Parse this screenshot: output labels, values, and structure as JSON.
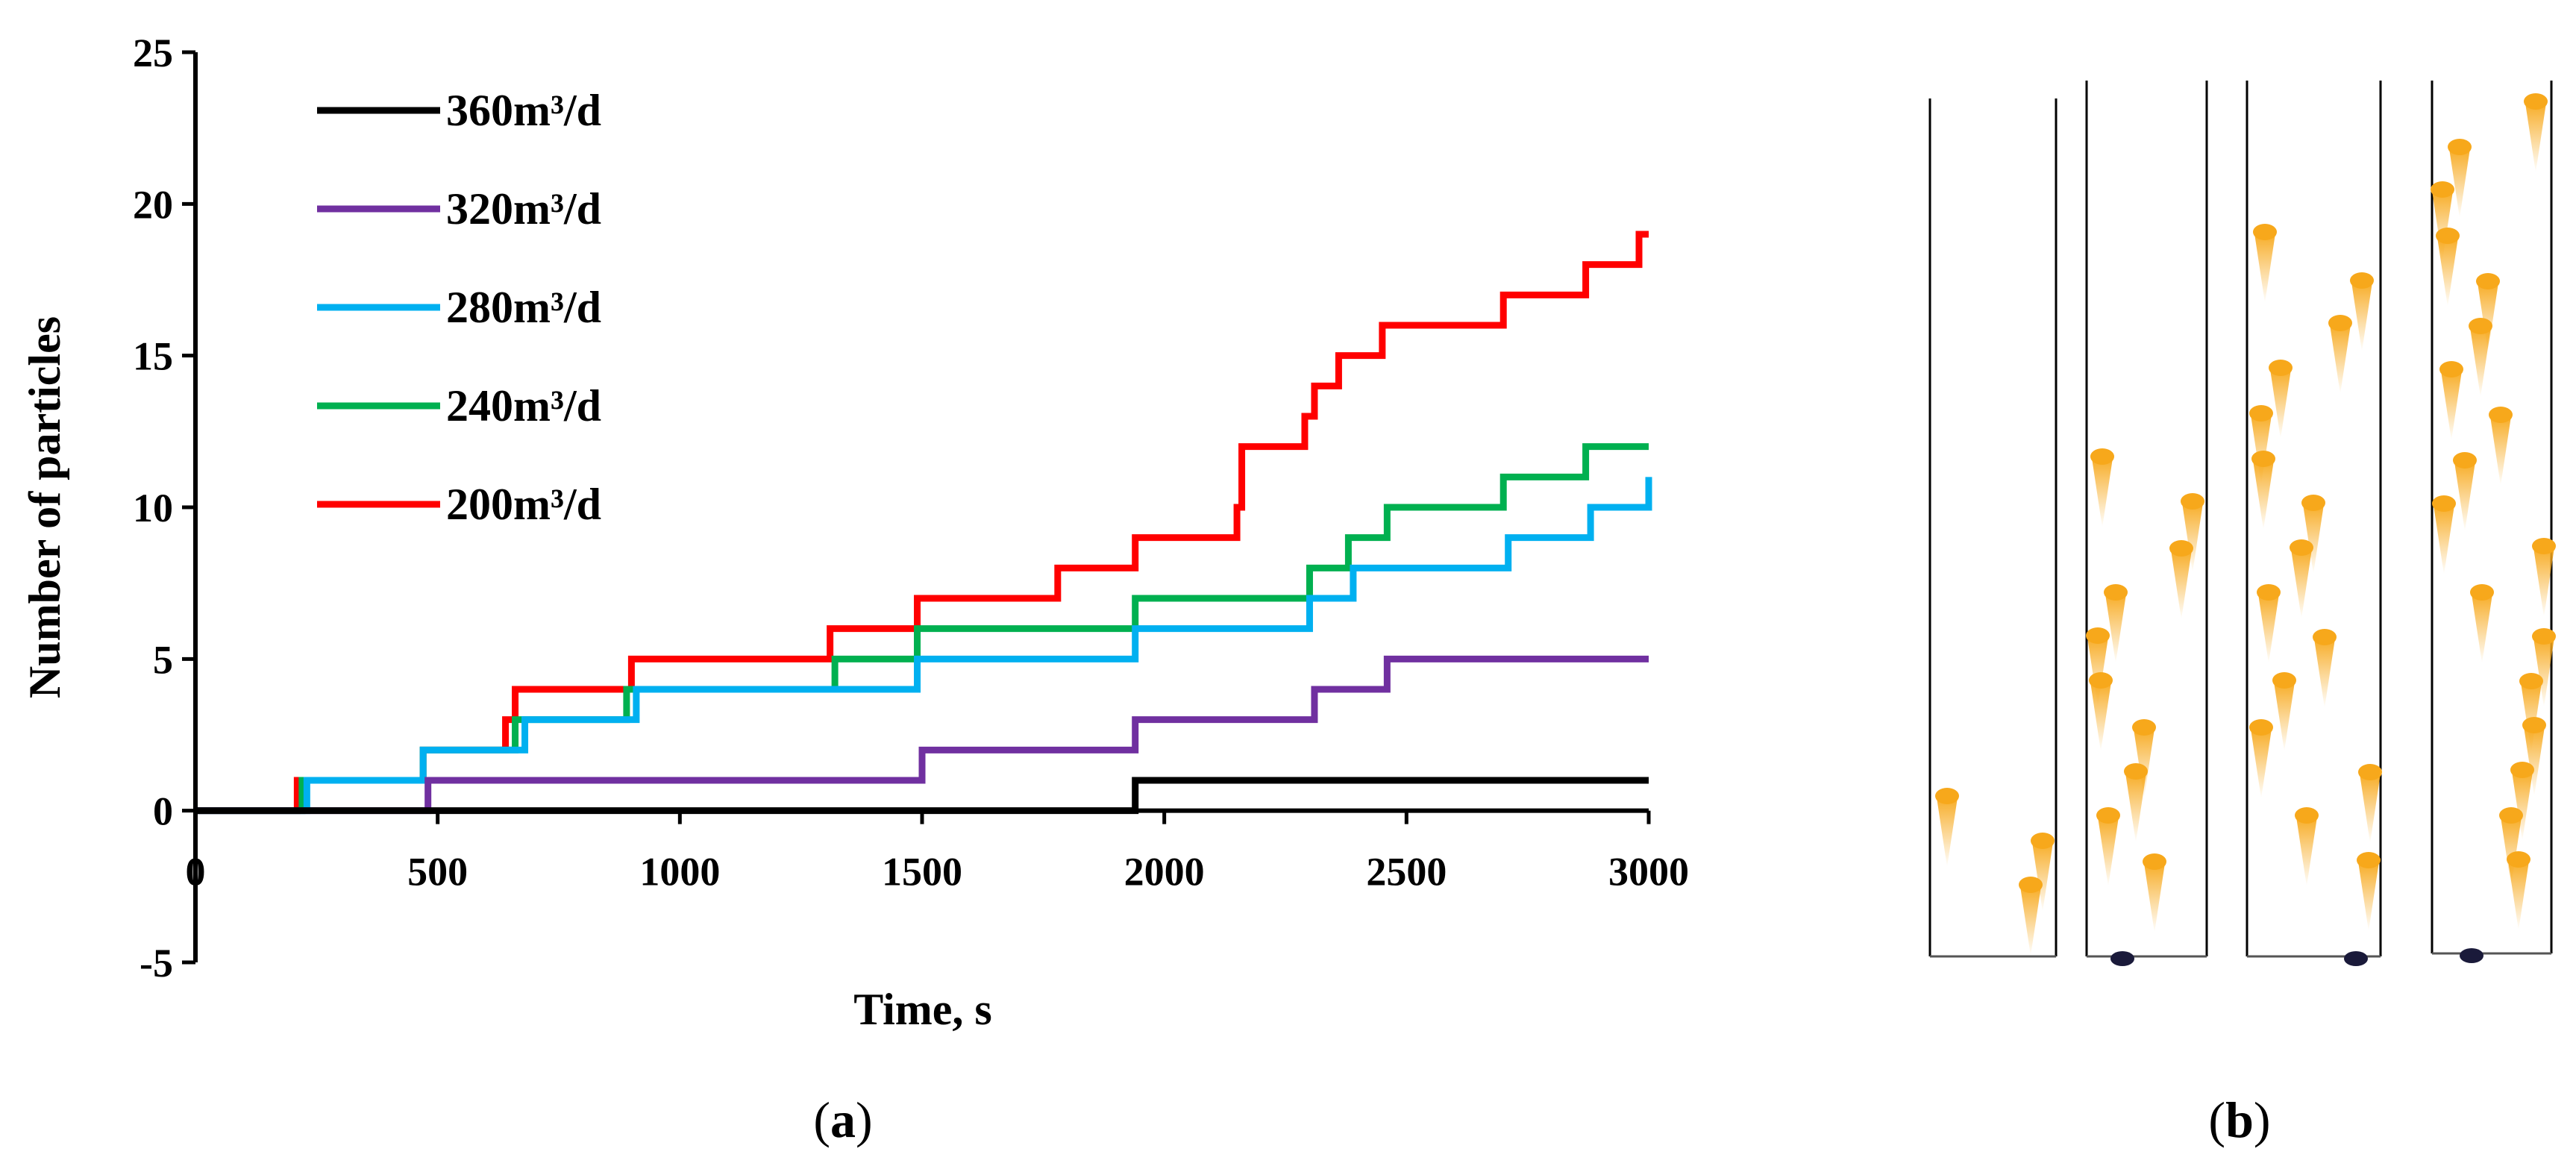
{
  "panels": {
    "a": {
      "label_open": "(",
      "label_letter": "a",
      "label_close": ")"
    },
    "b": {
      "label_open": "(",
      "label_letter": "b",
      "label_close": ")"
    }
  },
  "chart_data": {
    "type": "line",
    "step": true,
    "title": "",
    "xlabel": "Time, s",
    "ylabel": "Number of particles",
    "xlim": [
      0,
      3000
    ],
    "ylim": [
      -5,
      25
    ],
    "xticks": [
      0,
      500,
      1000,
      1500,
      2000,
      2500,
      3000
    ],
    "yticks": [
      -5,
      0,
      5,
      10,
      15,
      20,
      25
    ],
    "grid": false,
    "legend_position": "top-left",
    "series": [
      {
        "name": "360m³/d",
        "color": "#000000",
        "x": [
          0,
          1940,
          3000
        ],
        "y": [
          0,
          1,
          1
        ]
      },
      {
        "name": "320m³/d",
        "color": "#7030a0",
        "x": [
          0,
          480,
          1500,
          1940,
          2310,
          2460,
          3000
        ],
        "y": [
          0,
          1,
          2,
          3,
          4,
          5,
          5
        ]
      },
      {
        "name": "280m³/d",
        "color": "#00b0f0",
        "x": [
          0,
          230,
          470,
          680,
          910,
          1330,
          1490,
          1940,
          2300,
          2390,
          2710,
          2880,
          3000
        ],
        "y": [
          0,
          1,
          2,
          3,
          4,
          4,
          5,
          6,
          7,
          8,
          9,
          10,
          11
        ]
      },
      {
        "name": "240m³/d",
        "color": "#00b050",
        "x": [
          0,
          220,
          470,
          660,
          890,
          1320,
          1490,
          1940,
          2300,
          2380,
          2460,
          2700,
          2870,
          3000
        ],
        "y": [
          0,
          1,
          2,
          3,
          4,
          5,
          6,
          7,
          8,
          9,
          10,
          11,
          12,
          12
        ]
      },
      {
        "name": "200m³/d",
        "color": "#ff0000",
        "x": [
          0,
          210,
          470,
          640,
          660,
          900,
          1310,
          1490,
          1780,
          1940,
          2150,
          2160,
          2290,
          2310,
          2360,
          2450,
          2700,
          2870,
          2980,
          3000
        ],
        "y": [
          0,
          1,
          2,
          3,
          4,
          5,
          6,
          7,
          8,
          9,
          10,
          12,
          13,
          14,
          15,
          16,
          17,
          18,
          19,
          19
        ]
      }
    ]
  },
  "illustration": {
    "particle_color": "#f7a81b",
    "dot_color": "#1a1a3a",
    "wall_color": "#000000"
  }
}
